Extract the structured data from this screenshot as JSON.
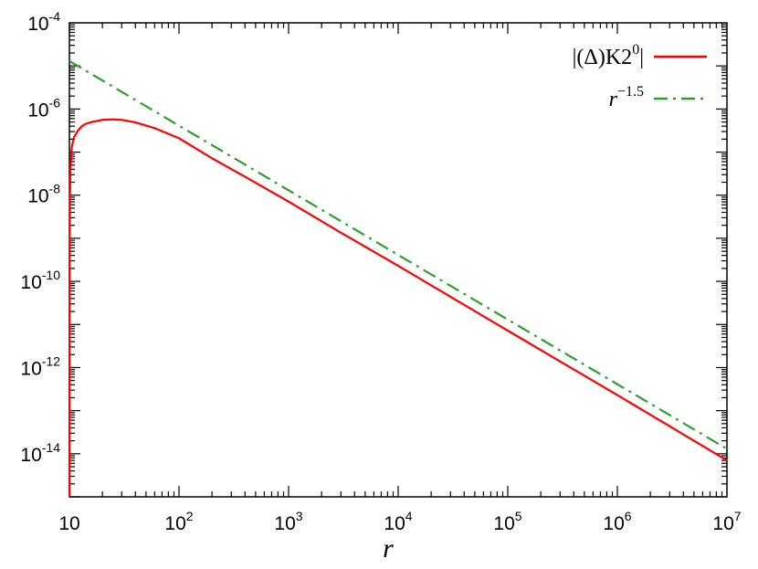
{
  "chart_data": {
    "type": "line",
    "xlabel": "r",
    "ylabel": "",
    "x_scale": "log",
    "y_scale": "log",
    "xlim": [
      10,
      10000000
    ],
    "ylim": [
      1e-15,
      0.0001
    ],
    "grid": false,
    "legend_position": "top-right",
    "x_ticks": [
      {
        "value": 10,
        "base": "10",
        "exp": ""
      },
      {
        "value": 100,
        "base": "10",
        "exp": "2"
      },
      {
        "value": 1000,
        "base": "10",
        "exp": "3"
      },
      {
        "value": 10000,
        "base": "10",
        "exp": "4"
      },
      {
        "value": 100000,
        "base": "10",
        "exp": "5"
      },
      {
        "value": 1000000,
        "base": "10",
        "exp": "6"
      },
      {
        "value": 10000000,
        "base": "10",
        "exp": "7"
      }
    ],
    "y_ticks": [
      {
        "value": 1e-14,
        "base": "10",
        "exp": "-14"
      },
      {
        "value": 1e-12,
        "base": "10",
        "exp": "-12"
      },
      {
        "value": 1e-10,
        "base": "10",
        "exp": "-10"
      },
      {
        "value": 1e-08,
        "base": "10",
        "exp": "-8"
      },
      {
        "value": 1e-06,
        "base": "10",
        "exp": "-6"
      },
      {
        "value": 0.0001,
        "base": "10",
        "exp": "-4"
      }
    ],
    "series": [
      {
        "name": "|(Δ)K20|",
        "color": "#ff0000",
        "line_style": "solid",
        "points": [
          [
            10.0,
            1e-15
          ],
          [
            10.02,
            1e-11
          ],
          [
            10.05,
            6e-10
          ],
          [
            10.1,
            6e-09
          ],
          [
            10.2,
            4e-08
          ],
          [
            10.5,
            1.3e-07
          ],
          [
            11,
            2.2e-07
          ],
          [
            12,
            3.2e-07
          ],
          [
            13,
            4e-07
          ],
          [
            14,
            4.5e-07
          ],
          [
            16,
            5e-07
          ],
          [
            20,
            5.6e-07
          ],
          [
            25,
            5.75e-07
          ],
          [
            30,
            5.6e-07
          ],
          [
            40,
            4.9e-07
          ],
          [
            60,
            3.6e-07
          ],
          [
            100,
            2.1e-07
          ],
          [
            200,
            7.2e-08
          ],
          [
            500,
            1.95e-08
          ],
          [
            1000,
            7.1e-09
          ],
          [
            3000,
            1.35e-09
          ],
          [
            10000,
            2.3e-10
          ],
          [
            100000,
            7.2e-12
          ],
          [
            1000000,
            2.3e-13
          ],
          [
            10000000,
            7e-15
          ]
        ]
      },
      {
        "name": "r−1.5",
        "color": "#2ca02c",
        "line_style": "dash-dot",
        "points": [
          [
            10,
            1.3e-05
          ],
          [
            10000000,
            1.3e-14
          ]
        ]
      }
    ],
    "legend": [
      {
        "series": 0,
        "label": "|(Δ)K2",
        "sup": "0",
        "tail": "|"
      },
      {
        "series": 1,
        "label": "r",
        "sup": "−1.5",
        "tail": ""
      }
    ]
  }
}
